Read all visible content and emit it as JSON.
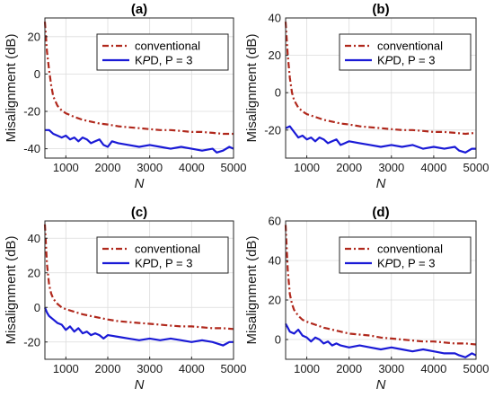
{
  "figure_note": "",
  "colors": {
    "conventional": "#b0281c",
    "kpd": "#1a1ad6",
    "grid": "#dcdcdc",
    "axis": "#262626"
  },
  "chart_data": [
    {
      "type": "line",
      "title": "(a)",
      "xlabel": "N",
      "ylabel": "Misalignment (dB)",
      "xlim": [
        500,
        5000
      ],
      "ylim": [
        -45,
        30
      ],
      "xticks": [
        1000,
        2000,
        3000,
        4000,
        5000
      ],
      "yticks": [
        -40,
        -20,
        0,
        20
      ],
      "grid": true,
      "legend": "top-right",
      "series": [
        {
          "name": "conventional",
          "color": "#b0281c",
          "style": "dash-dot",
          "x": [
            500,
            550,
            600,
            650,
            700,
            800,
            900,
            1000,
            1200,
            1400,
            1600,
            1800,
            2000,
            2250,
            2500,
            2750,
            3000,
            3250,
            3500,
            3750,
            4000,
            4250,
            4500,
            4750,
            5000
          ],
          "y": [
            28,
            12,
            2,
            -6,
            -12,
            -17,
            -19.5,
            -21,
            -23,
            -24.5,
            -25.5,
            -26.5,
            -27,
            -28,
            -28.5,
            -29,
            -29.5,
            -30,
            -30,
            -30.5,
            -31,
            -31,
            -31.5,
            -32,
            -32
          ]
        },
        {
          "name": "KPD, P = 3",
          "color": "#1a1ad6",
          "style": "solid",
          "x": [
            500,
            600,
            700,
            800,
            900,
            1000,
            1100,
            1200,
            1300,
            1400,
            1500,
            1600,
            1700,
            1800,
            1900,
            2000,
            2100,
            2250,
            2500,
            2750,
            3000,
            3250,
            3500,
            3750,
            4000,
            4250,
            4500,
            4600,
            4750,
            4900,
            5000
          ],
          "y": [
            -30,
            -30,
            -32,
            -33,
            -34,
            -33,
            -35,
            -34,
            -36,
            -34,
            -35,
            -37,
            -36,
            -35,
            -38,
            -39,
            -36,
            -37,
            -38,
            -39,
            -38,
            -39,
            -40,
            -39,
            -40,
            -41,
            -40,
            -42,
            -41,
            -39,
            -40
          ]
        }
      ]
    },
    {
      "type": "line",
      "title": "(b)",
      "xlabel": "N",
      "ylabel": "Misalignment (dB)",
      "xlim": [
        500,
        5000
      ],
      "ylim": [
        -35,
        40
      ],
      "xticks": [
        1000,
        2000,
        3000,
        4000,
        5000
      ],
      "yticks": [
        -20,
        0,
        20,
        40
      ],
      "grid": true,
      "legend": "top-right",
      "series": [
        {
          "name": "conventional",
          "color": "#b0281c",
          "style": "dash-dot",
          "x": [
            500,
            550,
            600,
            650,
            700,
            800,
            900,
            1000,
            1200,
            1400,
            1600,
            1800,
            2000,
            2250,
            2500,
            2750,
            3000,
            3250,
            3500,
            3750,
            4000,
            4250,
            4500,
            4750,
            5000
          ],
          "y": [
            38,
            20,
            8,
            0,
            -4,
            -8,
            -10,
            -11.5,
            -13,
            -14.5,
            -15.5,
            -16.5,
            -17,
            -18,
            -18.5,
            -19,
            -19.5,
            -20,
            -20,
            -20.5,
            -21,
            -21,
            -21.5,
            -22,
            -21.5
          ]
        },
        {
          "name": "KPD, P = 3",
          "color": "#1a1ad6",
          "style": "solid",
          "x": [
            500,
            600,
            700,
            800,
            900,
            1000,
            1100,
            1200,
            1300,
            1400,
            1500,
            1600,
            1700,
            1800,
            1900,
            2000,
            2250,
            2500,
            2750,
            3000,
            3250,
            3500,
            3750,
            4000,
            4250,
            4500,
            4600,
            4750,
            4900,
            5000
          ],
          "y": [
            -19,
            -18,
            -21,
            -24,
            -23,
            -25,
            -24,
            -26,
            -24,
            -25,
            -27,
            -26,
            -25,
            -28,
            -27,
            -26,
            -27,
            -28,
            -29,
            -28,
            -29,
            -28,
            -30,
            -29,
            -30,
            -29,
            -31,
            -32,
            -30,
            -30
          ]
        }
      ]
    },
    {
      "type": "line",
      "title": "(c)",
      "xlabel": "N",
      "ylabel": "Misalignment (dB)",
      "xlim": [
        500,
        5000
      ],
      "ylim": [
        -30,
        50
      ],
      "xticks": [
        1000,
        2000,
        3000,
        4000,
        5000
      ],
      "yticks": [
        -20,
        0,
        20,
        40
      ],
      "grid": true,
      "legend": "top-right",
      "series": [
        {
          "name": "conventional",
          "color": "#b0281c",
          "style": "dash-dot",
          "x": [
            500,
            550,
            600,
            650,
            700,
            800,
            900,
            1000,
            1200,
            1400,
            1600,
            1800,
            2000,
            2250,
            2500,
            2750,
            3000,
            3250,
            3500,
            3750,
            4000,
            4250,
            4500,
            4750,
            5000
          ],
          "y": [
            48,
            25,
            13,
            8,
            5,
            2,
            0,
            -1,
            -2.5,
            -4,
            -5,
            -6,
            -7,
            -8,
            -8.5,
            -9,
            -9.5,
            -10,
            -10.5,
            -11,
            -11,
            -11.5,
            -12,
            -12,
            -12.5
          ]
        },
        {
          "name": "KPD, P = 3",
          "color": "#1a1ad6",
          "style": "solid",
          "x": [
            500,
            550,
            600,
            700,
            800,
            900,
            1000,
            1100,
            1200,
            1300,
            1400,
            1500,
            1600,
            1700,
            1800,
            1900,
            2000,
            2250,
            2500,
            2750,
            3000,
            3250,
            3500,
            3750,
            4000,
            4250,
            4500,
            4750,
            4900,
            5000
          ],
          "y": [
            0,
            -3,
            -5,
            -7,
            -9,
            -10,
            -13,
            -11,
            -14,
            -12,
            -15,
            -14,
            -16,
            -15,
            -16,
            -18,
            -16,
            -17,
            -18,
            -19,
            -18,
            -19,
            -18,
            -19,
            -20,
            -19,
            -20,
            -22,
            -20,
            -20
          ]
        }
      ]
    },
    {
      "type": "line",
      "title": "(d)",
      "xlabel": "N",
      "ylabel": "Misalignment (dB)",
      "xlim": [
        500,
        5000
      ],
      "ylim": [
        -10,
        60
      ],
      "xticks": [
        1000,
        2000,
        3000,
        4000,
        5000
      ],
      "yticks": [
        0,
        20,
        40,
        60
      ],
      "grid": true,
      "legend": "top-right",
      "series": [
        {
          "name": "conventional",
          "color": "#b0281c",
          "style": "dash-dot",
          "x": [
            500,
            550,
            600,
            650,
            700,
            800,
            900,
            1000,
            1200,
            1400,
            1600,
            1800,
            2000,
            2250,
            2500,
            2750,
            3000,
            3250,
            3500,
            3750,
            4000,
            4250,
            4500,
            4750,
            5000
          ],
          "y": [
            58,
            35,
            23,
            18,
            15,
            12,
            10,
            9,
            7.5,
            6,
            5,
            4,
            3,
            2.5,
            2,
            1,
            0.5,
            0,
            -0.5,
            -1,
            -1,
            -1.5,
            -2,
            -2,
            -2.5
          ]
        },
        {
          "name": "KPD, P = 3",
          "color": "#1a1ad6",
          "style": "solid",
          "x": [
            500,
            550,
            600,
            700,
            800,
            900,
            1000,
            1100,
            1200,
            1300,
            1400,
            1500,
            1600,
            1700,
            1800,
            2000,
            2250,
            2500,
            2750,
            3000,
            3250,
            3500,
            3750,
            4000,
            4250,
            4500,
            4600,
            4750,
            4900,
            5000
          ],
          "y": [
            8,
            6,
            4,
            3,
            5,
            2,
            1,
            -1,
            1,
            0,
            -2,
            -1,
            -3,
            -2,
            -3,
            -4,
            -3,
            -4,
            -5,
            -4,
            -5,
            -6,
            -5,
            -6,
            -7,
            -7,
            -8,
            -9,
            -7,
            -8
          ]
        }
      ]
    }
  ]
}
